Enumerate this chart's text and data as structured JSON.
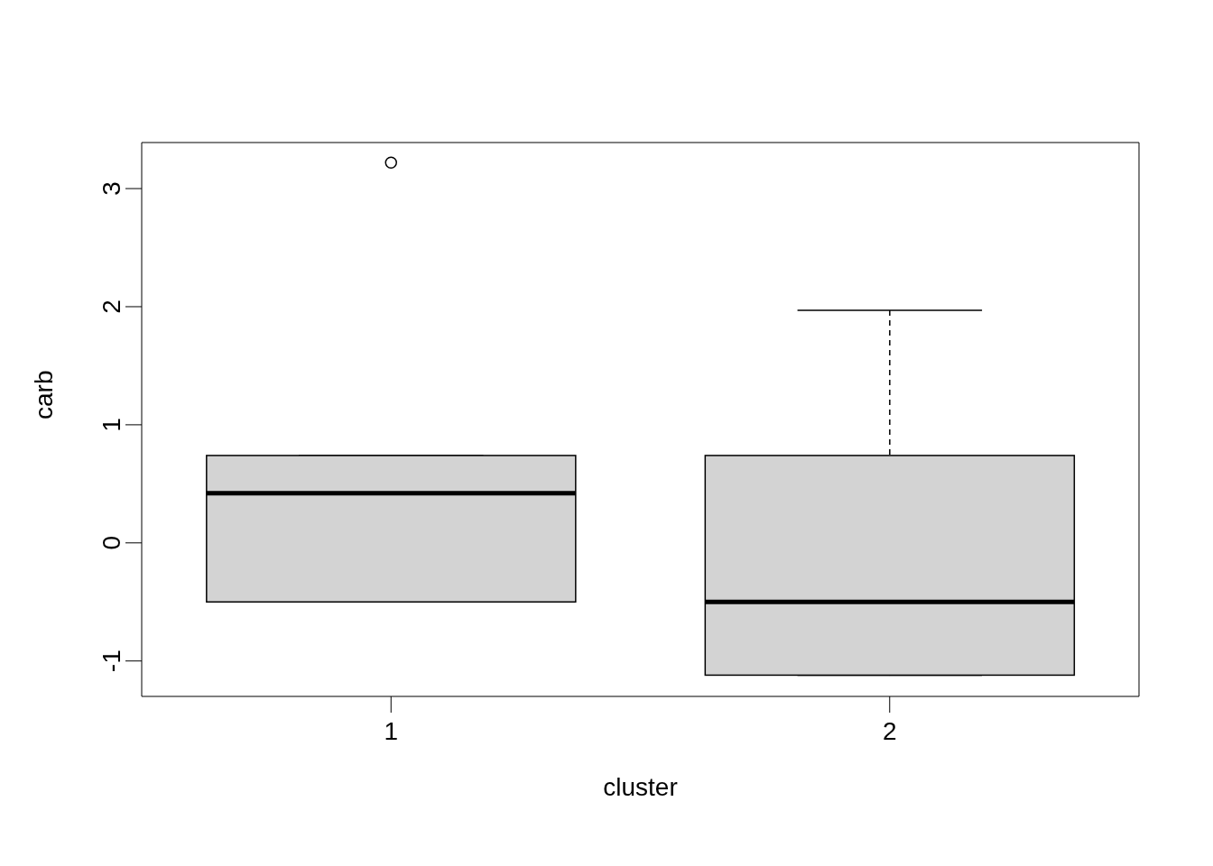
{
  "chart_data": {
    "type": "box",
    "xlabel": "cluster",
    "ylabel": "carb",
    "categories": [
      "1",
      "2"
    ],
    "boxes": [
      {
        "low": -0.5,
        "q1": -0.5,
        "median": 0.42,
        "q3": 0.74,
        "high": 0.74,
        "outliers": [
          3.22
        ]
      },
      {
        "low": -1.12,
        "q1": -1.12,
        "median": -0.5,
        "q3": 0.74,
        "high": 1.97
      }
    ],
    "color": "#d3d3d3",
    "ylim": [
      -1.3,
      3.39
    ],
    "yticks": [
      -1,
      0,
      1,
      2,
      3
    ]
  }
}
